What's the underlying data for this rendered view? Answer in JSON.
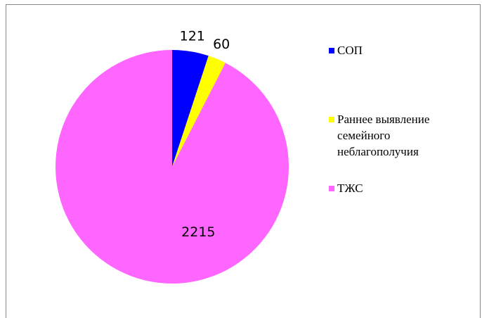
{
  "chart_data": {
    "type": "pie",
    "categories": [
      "СОП",
      "Раннее выявление семейного неблагополучия",
      "ТЖС"
    ],
    "values": [
      121,
      60,
      2215
    ],
    "colors": [
      "#0000ff",
      "#ffff00",
      "#ff66ff"
    ],
    "legend": "right"
  }
}
